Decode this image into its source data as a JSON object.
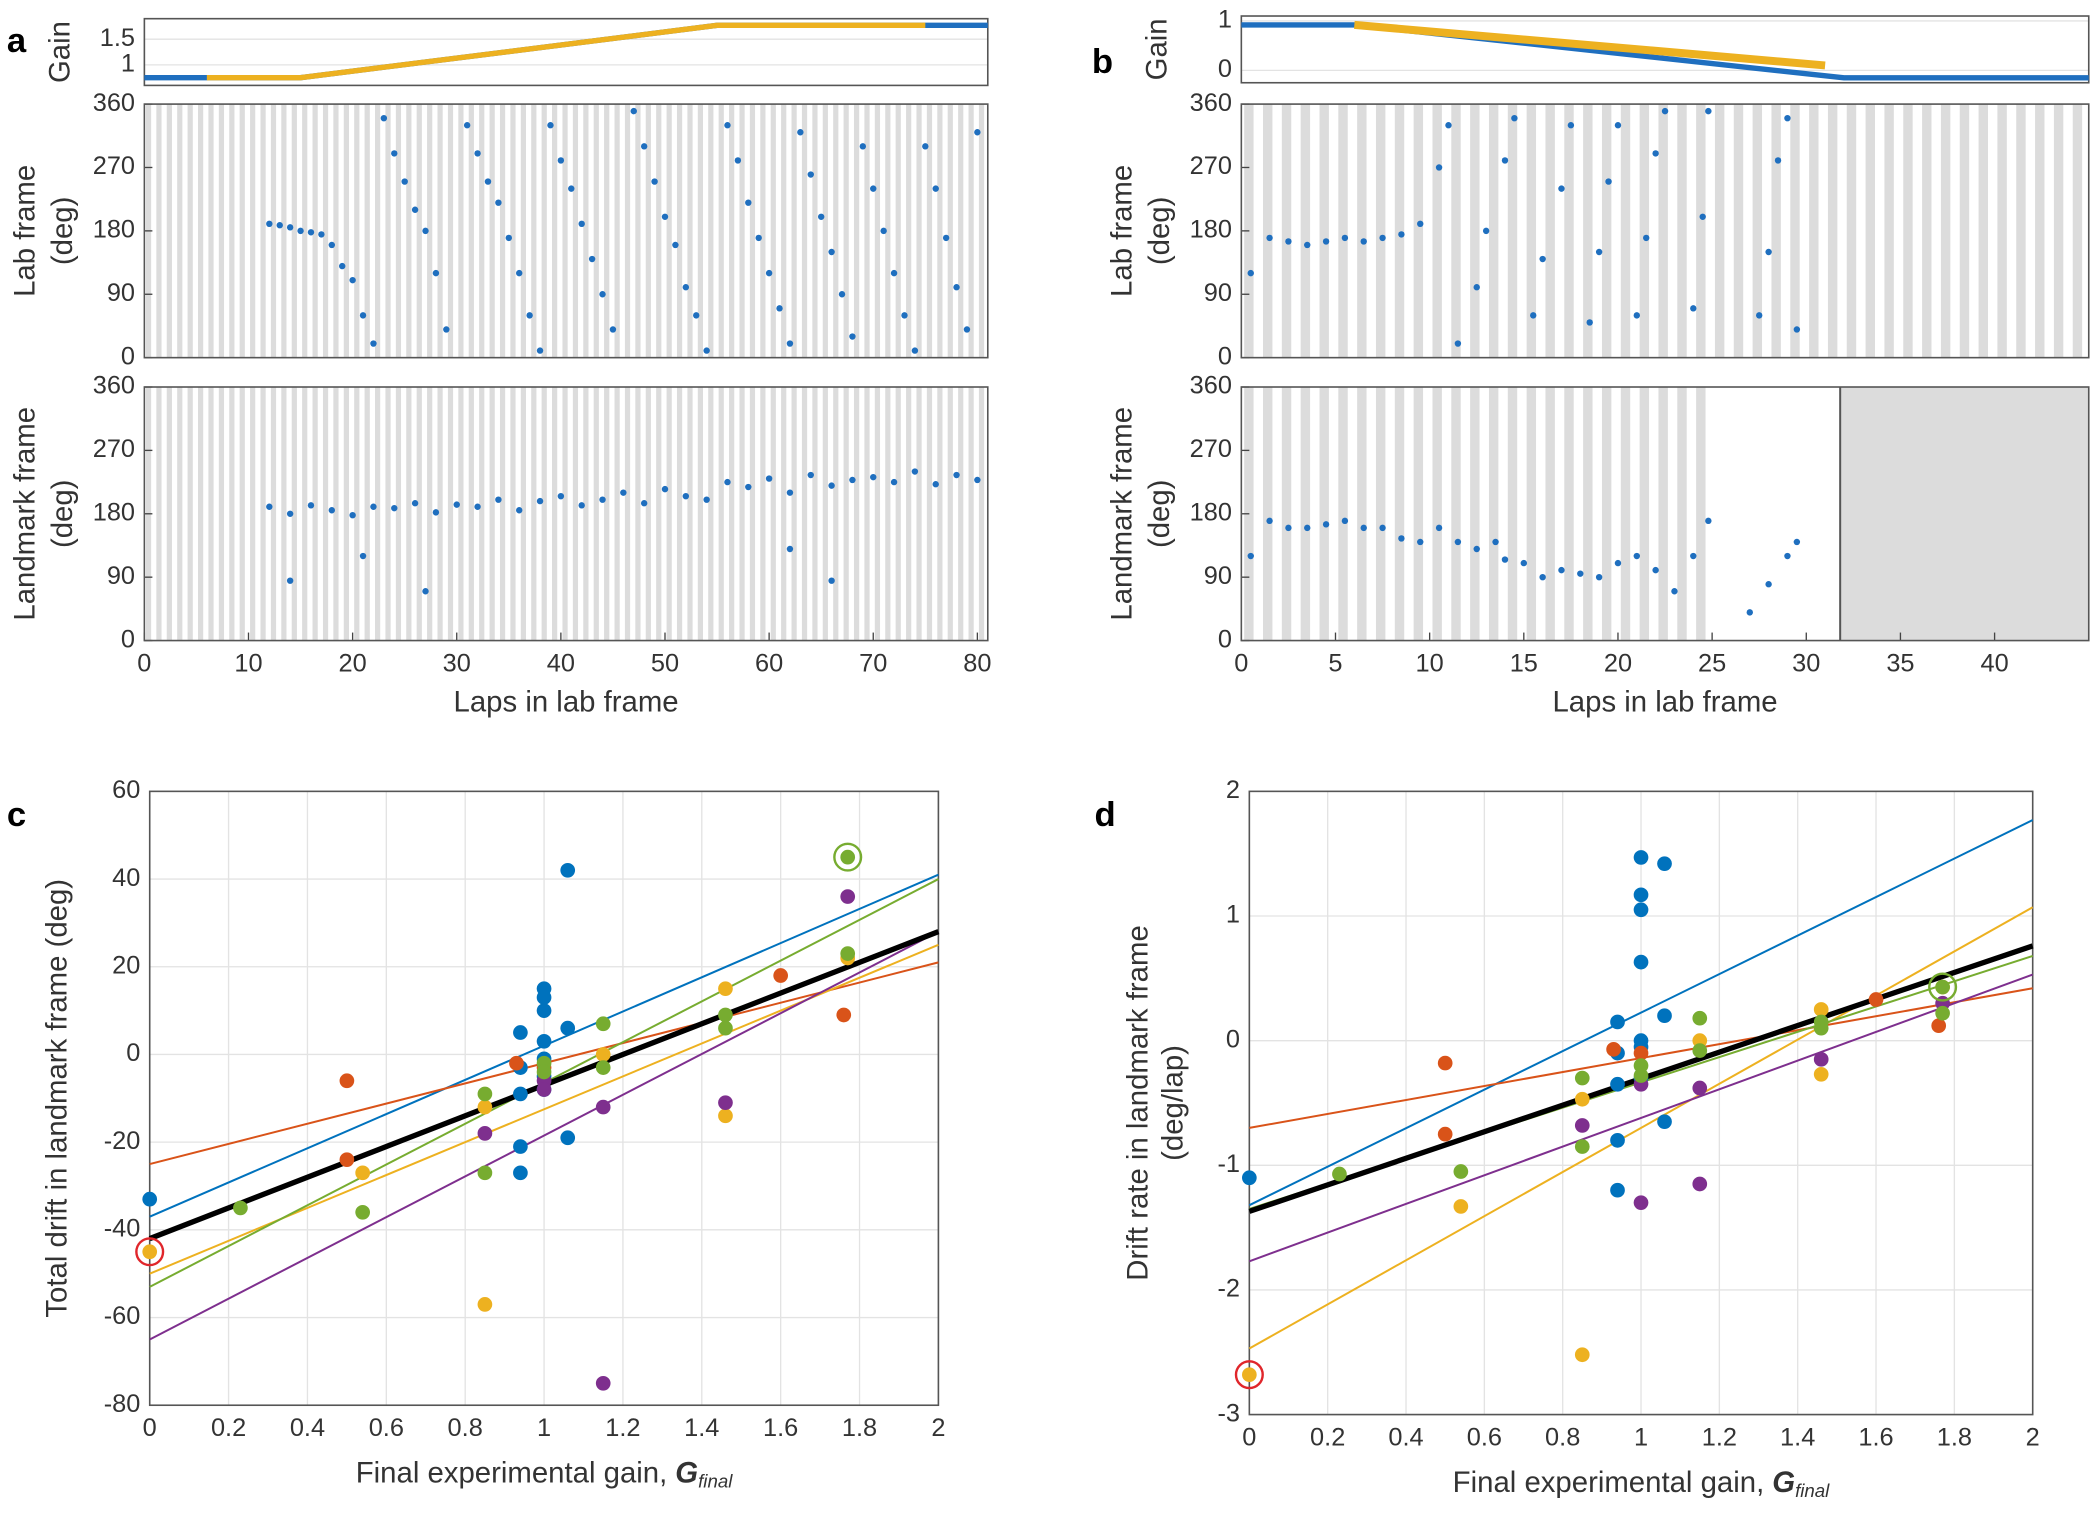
{
  "chart_data": [
    {
      "type": "line",
      "panel": "a",
      "ylabel": "Gain",
      "xlim": [
        0,
        81
      ],
      "ylim": [
        0.6,
        1.9
      ],
      "yticks": [
        1,
        1.5
      ],
      "grid": true,
      "series": [
        {
          "kind": "line",
          "color": "#1f6fbf",
          "line_width": 4,
          "x": [
            0,
            15,
            55,
            81
          ],
          "values": [
            0.75,
            0.75,
            1.77,
            1.77
          ]
        },
        {
          "kind": "line",
          "color": "#edb120",
          "line_width": 4,
          "x": [
            6,
            15,
            55,
            75
          ],
          "values": [
            0.75,
            0.75,
            1.77,
            1.77
          ]
        }
      ]
    },
    {
      "type": "scatter",
      "ylabel": [
        "Lab frame",
        "(deg)"
      ],
      "xlim": [
        0,
        81
      ],
      "ylim": [
        0,
        360
      ],
      "yticks": [
        0,
        90,
        180,
        270,
        360
      ],
      "lap_shading": true,
      "series": [
        {
          "kind": "points",
          "color": "#1f6fbf",
          "x": [
            12,
            13,
            14,
            15,
            16,
            17,
            18,
            19,
            20,
            21,
            22,
            23,
            24,
            25,
            26,
            27,
            28,
            29,
            31,
            32,
            33,
            34,
            35,
            36,
            37,
            38,
            39,
            40,
            41,
            42,
            43,
            44,
            45,
            47,
            48,
            49,
            50,
            51,
            52,
            53,
            54,
            56,
            57,
            58,
            59,
            60,
            61,
            62,
            63,
            64,
            65,
            66,
            67,
            68,
            69,
            70,
            71,
            72,
            73,
            74,
            75,
            76,
            77,
            78,
            79,
            80
          ],
          "values": [
            190,
            188,
            185,
            180,
            178,
            175,
            160,
            130,
            110,
            60,
            20,
            340,
            290,
            250,
            210,
            180,
            120,
            40,
            330,
            290,
            250,
            220,
            170,
            120,
            60,
            10,
            330,
            280,
            240,
            190,
            140,
            90,
            40,
            350,
            300,
            250,
            200,
            160,
            100,
            60,
            10,
            330,
            280,
            220,
            170,
            120,
            70,
            20,
            320,
            260,
            200,
            150,
            90,
            30,
            300,
            240,
            180,
            120,
            60,
            10,
            300,
            240,
            170,
            100,
            40,
            320
          ]
        }
      ]
    },
    {
      "type": "scatter",
      "ylabel": [
        "Landmark frame",
        "(deg)"
      ],
      "xlabel": "Laps in lab frame",
      "xlim": [
        0,
        81
      ],
      "ylim": [
        0,
        360
      ],
      "xticks": [
        0,
        10,
        20,
        30,
        40,
        50,
        60,
        70,
        80
      ],
      "yticks": [
        0,
        90,
        180,
        270,
        360
      ],
      "lap_shading": true,
      "series": [
        {
          "kind": "points",
          "color": "#1f6fbf",
          "x": [
            12,
            14,
            16,
            18,
            20,
            22,
            24,
            26,
            28,
            30,
            32,
            34,
            36,
            38,
            40,
            42,
            44,
            46,
            48,
            50,
            52,
            54,
            56,
            58,
            60,
            62,
            64,
            66,
            68,
            70,
            72,
            74,
            76,
            78,
            80,
            14,
            21,
            27,
            62,
            66
          ],
          "values": [
            190,
            180,
            192,
            185,
            178,
            190,
            188,
            195,
            182,
            193,
            190,
            200,
            185,
            198,
            205,
            192,
            200,
            210,
            195,
            215,
            205,
            200,
            225,
            218,
            230,
            210,
            235,
            220,
            228,
            232,
            225,
            240,
            222,
            235,
            228,
            85,
            120,
            70,
            130,
            85
          ]
        }
      ]
    },
    {
      "type": "line",
      "panel": "b",
      "ylabel": "Gain",
      "xlim": [
        0,
        45
      ],
      "ylim": [
        -0.25,
        1.1
      ],
      "yticks": [
        0,
        1
      ],
      "grid": true,
      "series": [
        {
          "kind": "line",
          "color": "#1f6fbf",
          "line_width": 4,
          "x": [
            0,
            6,
            32,
            45
          ],
          "values": [
            0.92,
            0.92,
            -0.15,
            -0.15
          ]
        },
        {
          "kind": "line",
          "color": "#edb120",
          "line_width": 6,
          "x": [
            6,
            31
          ],
          "values": [
            0.92,
            0.1
          ]
        }
      ]
    },
    {
      "type": "scatter",
      "ylabel": [
        "Lab frame",
        "(deg)"
      ],
      "xlim": [
        0,
        45
      ],
      "ylim": [
        0,
        360
      ],
      "yticks": [
        0,
        90,
        180,
        270,
        360
      ],
      "lap_shading": true,
      "series": [
        {
          "kind": "points",
          "color": "#1f6fbf",
          "x": [
            0.5,
            1.5,
            2.5,
            3.5,
            4.5,
            5.5,
            6.5,
            7.5,
            8.5,
            9.5,
            10.5,
            11,
            11.5,
            12.5,
            13,
            14,
            14.5,
            15.5,
            16,
            17,
            17.5,
            18.5,
            19,
            19.5,
            20,
            21,
            21.5,
            22,
            22.5,
            24,
            24.5,
            24.8,
            27.5,
            28,
            28.5,
            29,
            29.5
          ],
          "values": [
            120,
            170,
            165,
            160,
            165,
            170,
            165,
            170,
            175,
            190,
            270,
            330,
            20,
            100,
            180,
            280,
            340,
            60,
            140,
            240,
            330,
            50,
            150,
            250,
            330,
            60,
            170,
            290,
            350,
            70,
            200,
            350,
            60,
            150,
            280,
            340,
            40
          ]
        }
      ]
    },
    {
      "type": "scatter",
      "ylabel": [
        "Landmark frame",
        "(deg)"
      ],
      "xlabel": "Laps in lab frame",
      "xlim": [
        0,
        45
      ],
      "ylim": [
        0,
        360
      ],
      "xticks": [
        0,
        5,
        10,
        15,
        20,
        25,
        30,
        35,
        40
      ],
      "yticks": [
        0,
        90,
        180,
        270,
        360
      ],
      "lap_shading": true,
      "series": [
        {
          "kind": "points",
          "color": "#1f6fbf",
          "x": [
            0.5,
            1.5,
            2.5,
            3.5,
            4.5,
            5.5,
            6.5,
            7.5,
            8.5,
            9.5,
            10.5,
            11.5,
            12.5,
            13.5,
            14,
            15,
            16,
            17,
            18,
            19,
            20,
            21,
            22,
            23,
            24,
            24.8,
            27,
            28,
            29,
            29.5
          ],
          "values": [
            120,
            170,
            160,
            160,
            165,
            170,
            160,
            160,
            145,
            140,
            160,
            140,
            130,
            140,
            115,
            110,
            90,
            100,
            95,
            90,
            110,
            120,
            100,
            70,
            120,
            170,
            40,
            80,
            120,
            140
          ]
        }
      ]
    },
    {
      "type": "scatter",
      "panel": "c",
      "ylabel": "Total drift in landmark frame (deg)",
      "xlabel": "Final experimental gain,",
      "xlabel_symbol": "G",
      "xlabel_subscript": "final",
      "xlim": [
        0,
        2
      ],
      "ylim": [
        -80,
        60
      ],
      "xticks": [
        0,
        0.2,
        0.4,
        0.6,
        0.8,
        1,
        1.2,
        1.4,
        1.6,
        1.8,
        2
      ],
      "yticks": [
        -80,
        -60,
        -40,
        -20,
        0,
        20,
        40,
        60
      ],
      "grid": true,
      "series": [
        {
          "kind": "line",
          "color": "#0072bd",
          "line_width": 1.5,
          "x": [
            0,
            2
          ],
          "values": [
            -37,
            41
          ]
        },
        {
          "kind": "line",
          "color": "#d95319",
          "line_width": 1.5,
          "x": [
            0,
            2
          ],
          "values": [
            -25,
            21
          ]
        },
        {
          "kind": "line",
          "color": "#edb120",
          "line_width": 1.5,
          "x": [
            0,
            2
          ],
          "values": [
            -50,
            25
          ]
        },
        {
          "kind": "line",
          "color": "#7e2f8e",
          "line_width": 1.5,
          "x": [
            0,
            2
          ],
          "values": [
            -65,
            28
          ]
        },
        {
          "kind": "line",
          "color": "#77ac30",
          "line_width": 1.5,
          "x": [
            0,
            2
          ],
          "values": [
            -53,
            40
          ]
        },
        {
          "kind": "line",
          "color": "#000000",
          "line_width": 4,
          "x": [
            0,
            2
          ],
          "values": [
            -42,
            28
          ]
        },
        {
          "kind": "points",
          "color": "#0072bd",
          "x": [
            0,
            0.94,
            0.94,
            0.94,
            0.94,
            0.94,
            1,
            1,
            1,
            1,
            1,
            1,
            1,
            1.06,
            1.06,
            1.06
          ],
          "values": [
            -33,
            5,
            -3,
            -9,
            -21,
            -27,
            15,
            13,
            10,
            3,
            -1,
            -5,
            -8,
            42,
            6,
            -19
          ]
        },
        {
          "kind": "points",
          "color": "#d95319",
          "x": [
            0.5,
            0.5,
            0.93,
            1,
            1.6,
            1.76
          ],
          "values": [
            -6,
            -24,
            -2,
            -3,
            18,
            9
          ]
        },
        {
          "kind": "points",
          "color": "#edb120",
          "x": [
            0,
            0.54,
            0.85,
            0.85,
            1.15,
            1.46,
            1.46,
            1.77
          ],
          "values": [
            -45,
            -27,
            -12,
            -57,
            0,
            15,
            -14,
            22
          ]
        },
        {
          "kind": "points",
          "color": "#7e2f8e",
          "x": [
            0.85,
            1,
            1,
            1.15,
            1.15,
            1.46,
            1.77
          ],
          "values": [
            -18,
            -6,
            -8,
            -12,
            -75,
            -11,
            36
          ]
        },
        {
          "kind": "points",
          "color": "#77ac30",
          "x": [
            0.23,
            0.54,
            0.85,
            0.85,
            1,
            1,
            1.15,
            1.15,
            1.46,
            1.46,
            1.77,
            1.77
          ],
          "values": [
            -35,
            -36,
            -9,
            -27,
            -2,
            -4,
            7,
            -3,
            9,
            6,
            45,
            23
          ]
        },
        {
          "kind": "ring",
          "color": "#77ac30",
          "x": [
            1.77
          ],
          "values": [
            45
          ]
        },
        {
          "kind": "ring",
          "color": "#e0262b",
          "x": [
            0
          ],
          "values": [
            -45
          ]
        }
      ]
    },
    {
      "type": "scatter",
      "panel": "d",
      "ylabel": [
        "Drift rate in landmark frame",
        "(deg/lap)"
      ],
      "xlabel": "Final experimental gain,",
      "xlabel_symbol": "G",
      "xlabel_subscript": "final",
      "xlim": [
        0,
        2
      ],
      "ylim": [
        -3,
        2
      ],
      "xticks": [
        0,
        0.2,
        0.4,
        0.6,
        0.8,
        1,
        1.2,
        1.4,
        1.6,
        1.8,
        2
      ],
      "yticks": [
        -3,
        -2,
        -1,
        0,
        1,
        2
      ],
      "grid": true,
      "series": [
        {
          "kind": "line",
          "color": "#0072bd",
          "line_width": 1.5,
          "x": [
            0,
            2
          ],
          "values": [
            -1.32,
            1.77
          ]
        },
        {
          "kind": "line",
          "color": "#d95319",
          "line_width": 1.5,
          "x": [
            0,
            2
          ],
          "values": [
            -0.7,
            0.42
          ]
        },
        {
          "kind": "line",
          "color": "#edb120",
          "line_width": 1.5,
          "x": [
            0,
            2
          ],
          "values": [
            -2.47,
            1.07
          ]
        },
        {
          "kind": "line",
          "color": "#7e2f8e",
          "line_width": 1.5,
          "x": [
            0,
            2
          ],
          "values": [
            -1.77,
            0.53
          ]
        },
        {
          "kind": "line",
          "color": "#77ac30",
          "line_width": 1.5,
          "x": [
            0,
            2
          ],
          "values": [
            -1.35,
            0.68
          ]
        },
        {
          "kind": "line",
          "color": "#000000",
          "line_width": 4,
          "x": [
            0,
            2
          ],
          "values": [
            -1.37,
            0.76
          ]
        },
        {
          "kind": "points",
          "color": "#0072bd",
          "x": [
            0,
            0.94,
            0.94,
            0.94,
            0.94,
            0.94,
            1,
            1,
            1,
            1,
            1,
            1,
            1,
            1.06,
            1.06,
            1.06
          ],
          "values": [
            -1.1,
            0.15,
            -0.1,
            -0.35,
            -0.8,
            -1.2,
            1.47,
            1.17,
            1.05,
            0.63,
            0,
            -0.05,
            -0.3,
            1.42,
            0.2,
            -0.65
          ]
        },
        {
          "kind": "points",
          "color": "#d95319",
          "x": [
            0.5,
            0.5,
            0.93,
            1,
            1.6,
            1.76
          ],
          "values": [
            -0.18,
            -0.75,
            -0.07,
            -0.1,
            0.33,
            0.12
          ]
        },
        {
          "kind": "points",
          "color": "#edb120",
          "x": [
            0,
            0.54,
            0.85,
            0.85,
            1.15,
            1.46,
            1.46,
            1.77
          ],
          "values": [
            -2.68,
            -1.33,
            -0.47,
            -2.52,
            0,
            0.25,
            -0.27,
            0.43
          ]
        },
        {
          "kind": "points",
          "color": "#7e2f8e",
          "x": [
            0.85,
            1,
            1,
            1.15,
            1.15,
            1.46,
            1.77
          ],
          "values": [
            -0.68,
            -0.35,
            -1.3,
            -0.38,
            -1.15,
            -0.15,
            0.3
          ]
        },
        {
          "kind": "points",
          "color": "#77ac30",
          "x": [
            0.23,
            0.54,
            0.85,
            0.85,
            1,
            1,
            1.15,
            1.15,
            1.46,
            1.46,
            1.77,
            1.77
          ],
          "values": [
            -1.07,
            -1.05,
            -0.3,
            -0.85,
            -0.2,
            -0.28,
            0.18,
            -0.08,
            0.1,
            0.15,
            0.43,
            0.22
          ]
        },
        {
          "kind": "ring",
          "color": "#77ac30",
          "x": [
            1.77
          ],
          "values": [
            0.43
          ]
        },
        {
          "kind": "ring",
          "color": "#e0262b",
          "x": [
            0
          ],
          "values": [
            -2.68
          ]
        }
      ]
    }
  ]
}
